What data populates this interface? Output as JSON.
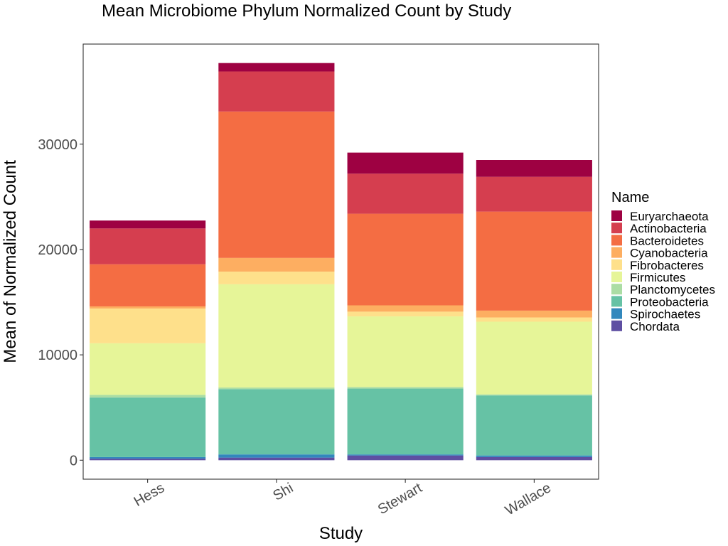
{
  "chart_data": {
    "type": "bar",
    "stacked": true,
    "title": "Mean Microbiome Phylum Normalized Count by Study",
    "xlabel": "Study",
    "ylabel": "Mean of Normalized Count",
    "ylim": [
      -1800,
      39500
    ],
    "yticks": [
      0,
      10000,
      20000,
      30000
    ],
    "grid": false,
    "legend_position": "right",
    "legend_title": "Name",
    "categories": [
      "Hess",
      "Shi",
      "Stewart",
      "Wallace"
    ],
    "series": [
      {
        "name": "Chordata",
        "color": "#5E4FA2",
        "values": [
          150,
          250,
          450,
          300
        ]
      },
      {
        "name": "Spirochaetes",
        "color": "#3288BD",
        "values": [
          150,
          300,
          100,
          150
        ]
      },
      {
        "name": "Proteobacteria",
        "color": "#66C2A5",
        "values": [
          5650,
          6200,
          6250,
          5700
        ]
      },
      {
        "name": "Planctomycetes",
        "color": "#ABDDA4",
        "values": [
          250,
          150,
          150,
          100
        ]
      },
      {
        "name": "Firmicutes",
        "color": "#E6F598",
        "values": [
          4900,
          9800,
          6700,
          6900
        ]
      },
      {
        "name": "Fibrobacteres",
        "color": "#FEE08B",
        "values": [
          3300,
          1200,
          450,
          400
        ]
      },
      {
        "name": "Cyanobacteria",
        "color": "#FDAE61",
        "values": [
          200,
          1300,
          600,
          650
        ]
      },
      {
        "name": "Bacteroidetes",
        "color": "#F46D43",
        "values": [
          4000,
          13900,
          8700,
          9400
        ]
      },
      {
        "name": "Actinobacteria",
        "color": "#D53E4F",
        "values": [
          3400,
          3800,
          3800,
          3300
        ]
      },
      {
        "name": "Euryarchaeota",
        "color": "#9E0142",
        "values": [
          750,
          800,
          2000,
          1600
        ]
      }
    ],
    "legend_order": [
      "Euryarchaeota",
      "Actinobacteria",
      "Bacteroidetes",
      "Cyanobacteria",
      "Fibrobacteres",
      "Firmicutes",
      "Planctomycetes",
      "Proteobacteria",
      "Spirochaetes",
      "Chordata"
    ]
  }
}
